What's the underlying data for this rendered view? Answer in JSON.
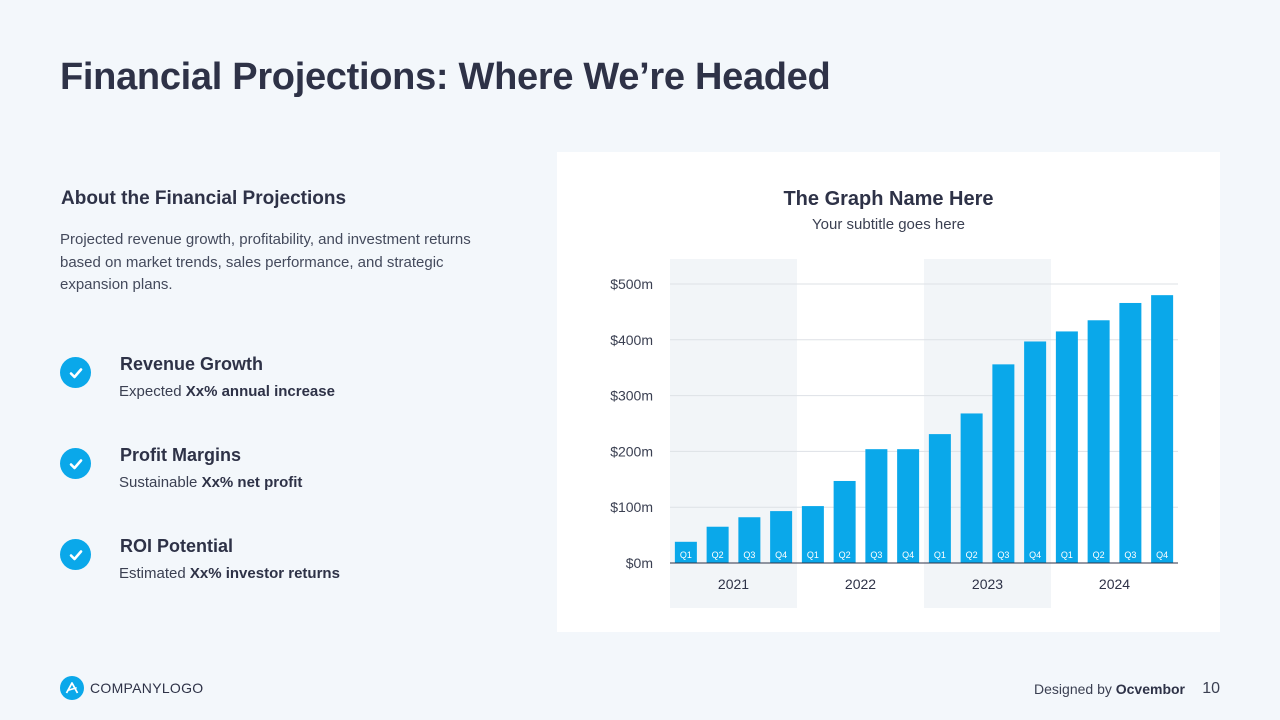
{
  "slide": {
    "title": "Financial Projections: Where We’re Headed",
    "page_number": "10"
  },
  "about": {
    "heading": "About the Financial Projections",
    "body": "Projected revenue growth, profitability, and investment returns based on market trends, sales performance, and strategic expansion plans."
  },
  "features": [
    {
      "icon": "check-icon",
      "title": "Revenue Growth",
      "desc_prefix": "Expected ",
      "desc_bold": "Xx% annual increase"
    },
    {
      "icon": "check-icon",
      "title": "Profit Margins",
      "desc_prefix": "Sustainable ",
      "desc_bold": "Xx% net profit"
    },
    {
      "icon": "check-icon",
      "title": "ROI Potential",
      "desc_prefix": "Estimated ",
      "desc_bold": "Xx% investor returns"
    }
  ],
  "footer": {
    "logo_icon": "company-logo-icon",
    "logo_text": "COMPANYLOGO",
    "credit_prefix": "Designed by ",
    "credit_name": "Ocvembor"
  },
  "colors": {
    "accent": "#0aa8ea",
    "title": "#2e3247",
    "background": "#f3f7fb",
    "year_band": "#f2f5f8"
  },
  "chart_data": {
    "type": "bar",
    "title": "The Graph Name Here",
    "subtitle": "Your subtitle goes here",
    "xlabel": "",
    "ylabel": "",
    "ylim": [
      0,
      500
    ],
    "yticks": [
      0,
      100,
      200,
      300,
      400,
      500
    ],
    "ytick_labels": [
      "$0m",
      "$100m",
      "$200m",
      "$300m",
      "$400m",
      "$500m"
    ],
    "grid": true,
    "categories": [
      "Q1",
      "Q2",
      "Q3",
      "Q4",
      "Q1",
      "Q2",
      "Q3",
      "Q4",
      "Q1",
      "Q2",
      "Q3",
      "Q4",
      "Q1",
      "Q2",
      "Q3",
      "Q4"
    ],
    "groups": [
      {
        "label": "2021",
        "shaded": true
      },
      {
        "label": "2022",
        "shaded": false
      },
      {
        "label": "2023",
        "shaded": true
      },
      {
        "label": "2024",
        "shaded": false
      }
    ],
    "values": [
      38,
      65,
      82,
      93,
      102,
      147,
      204,
      204,
      231,
      268,
      356,
      397,
      415,
      435,
      466,
      480
    ]
  }
}
